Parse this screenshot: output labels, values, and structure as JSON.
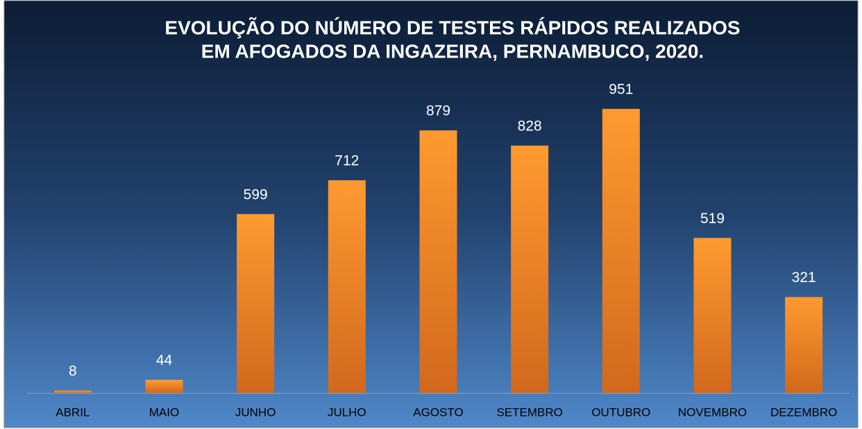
{
  "chart_data": {
    "type": "bar",
    "title": [
      "EVOLUÇÃO DO NÚMERO DE TESTES RÁPIDOS REALIZADOS",
      "EM AFOGADOS DA INGAZEIRA, PERNAMBUCO, 2020."
    ],
    "categories": [
      "ABRIL",
      "MAIO",
      "JUNHO",
      "JULHO",
      "AGOSTO",
      "SETEMBRO",
      "OUTUBRO",
      "NOVEMBRO",
      "DEZEMBRO"
    ],
    "values": [
      8,
      44,
      599,
      712,
      879,
      828,
      951,
      519,
      321
    ],
    "color": "#f68a24",
    "ylim": [
      0,
      1000
    ]
  }
}
